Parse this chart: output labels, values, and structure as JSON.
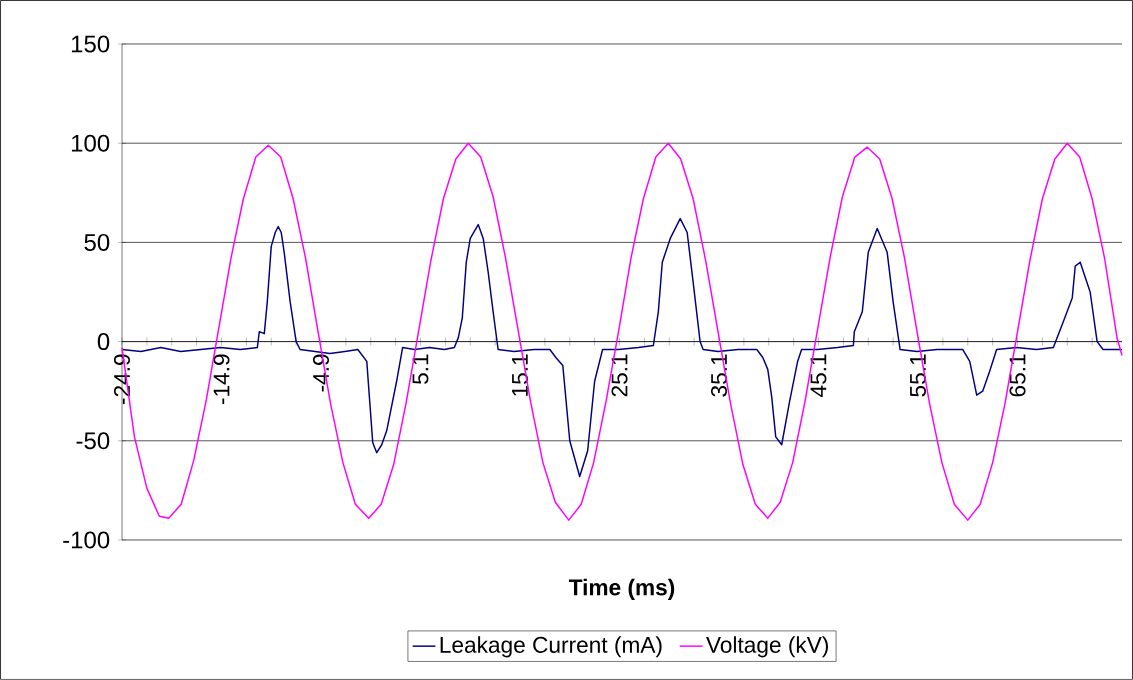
{
  "chart_data": {
    "type": "line",
    "xlabel": "Time (ms)",
    "xlim": [
      -24.9,
      75.6
    ],
    "ylim": [
      -100,
      150
    ],
    "xticks": [
      {
        "value": -24.9,
        "label": "-24.9"
      },
      {
        "value": -22.4,
        "label": null
      },
      {
        "value": -19.9,
        "label": null
      },
      {
        "value": -17.4,
        "label": null
      },
      {
        "value": -14.9,
        "label": "-14.9"
      },
      {
        "value": -12.4,
        "label": null
      },
      {
        "value": -9.9,
        "label": null
      },
      {
        "value": -7.4,
        "label": null
      },
      {
        "value": -4.9,
        "label": "-4.9"
      },
      {
        "value": -2.4,
        "label": null
      },
      {
        "value": 0.1,
        "label": null
      },
      {
        "value": 2.6,
        "label": null
      },
      {
        "value": 5.1,
        "label": "5.1"
      },
      {
        "value": 7.6,
        "label": null
      },
      {
        "value": 10.1,
        "label": null
      },
      {
        "value": 12.6,
        "label": null
      },
      {
        "value": 15.1,
        "label": "15.1"
      },
      {
        "value": 17.6,
        "label": null
      },
      {
        "value": 20.1,
        "label": null
      },
      {
        "value": 22.6,
        "label": null
      },
      {
        "value": 25.1,
        "label": "25.1"
      },
      {
        "value": 27.6,
        "label": null
      },
      {
        "value": 30.1,
        "label": null
      },
      {
        "value": 32.6,
        "label": null
      },
      {
        "value": 35.1,
        "label": "35.1"
      },
      {
        "value": 37.6,
        "label": null
      },
      {
        "value": 40.1,
        "label": null
      },
      {
        "value": 42.6,
        "label": null
      },
      {
        "value": 45.1,
        "label": "45.1"
      },
      {
        "value": 47.6,
        "label": null
      },
      {
        "value": 50.1,
        "label": null
      },
      {
        "value": 52.6,
        "label": null
      },
      {
        "value": 55.1,
        "label": "55.1"
      },
      {
        "value": 57.6,
        "label": null
      },
      {
        "value": 60.1,
        "label": null
      },
      {
        "value": 62.6,
        "label": null
      },
      {
        "value": 65.1,
        "label": "65.1"
      },
      {
        "value": 67.6,
        "label": null
      },
      {
        "value": 70.1,
        "label": null
      },
      {
        "value": 72.6,
        "label": null
      },
      {
        "value": 75.1,
        "label": null
      }
    ],
    "yticks": [
      -100,
      -50,
      0,
      50,
      100,
      150
    ],
    "grid": "y",
    "legend": "bottom",
    "series": [
      {
        "name": "Leakage Current (mA)",
        "color": "#000080",
        "x": [
          -24.9,
          -23,
          -21,
          -19,
          -17,
          -15,
          -13,
          -11.3,
          -11.1,
          -10.6,
          -10.3,
          -9.9,
          -9.5,
          -9.2,
          -8.9,
          -8.6,
          -8.0,
          -7.4,
          -7.0,
          -5.5,
          -4,
          -2.5,
          -1.2,
          -0.3,
          0.3,
          0.7,
          1.2,
          1.7,
          2.7,
          3.3,
          4.5,
          6,
          7.5,
          8.5,
          8.9,
          9.3,
          9.7,
          10.1,
          10.9,
          11.4,
          11.9,
          12.4,
          12.9,
          14.5,
          16.5,
          18.1,
          18.7,
          19.4,
          20.1,
          21.1,
          21.9,
          22.6,
          23.4,
          25,
          27,
          28.5,
          29.0,
          29.4,
          30.2,
          31.2,
          31.9,
          32.5,
          33.2,
          33.5,
          35,
          37,
          38.9,
          39.5,
          40.0,
          40.4,
          40.8,
          41.4,
          42.2,
          43.0,
          43.4,
          45,
          47,
          48.6,
          48.7,
          49.5,
          50.1,
          51.0,
          52.0,
          52.6,
          53.3,
          55,
          57,
          59.6,
          60.3,
          61.0,
          61.6,
          62.3,
          63.0,
          65,
          67,
          68.7,
          69.7,
          70.6,
          70.9,
          71.4,
          72.4,
          73.1,
          73.7,
          75.6
        ],
        "values": [
          -4,
          -5,
          -3,
          -5,
          -4,
          -3,
          -4,
          -3,
          5,
          4,
          20,
          48,
          55,
          58,
          55,
          45,
          20,
          0,
          -4,
          -5,
          -6,
          -5,
          -4,
          -10,
          -51,
          -56,
          -52,
          -45,
          -20,
          -3,
          -4,
          -3,
          -4,
          -3,
          2,
          12,
          40,
          52,
          59,
          52,
          35,
          15,
          -4,
          -5,
          -4,
          -4,
          -8,
          -12,
          -50,
          -68,
          -55,
          -20,
          -4,
          -4,
          -3,
          -2,
          15,
          40,
          52,
          62,
          55,
          30,
          0,
          -4,
          -5,
          -4,
          -4,
          -8,
          -14,
          -28,
          -48,
          -52,
          -30,
          -10,
          -4,
          -4,
          -3,
          -2,
          5,
          15,
          45,
          57,
          45,
          20,
          -4,
          -5,
          -4,
          -4,
          -10,
          -27,
          -25,
          -15,
          -4,
          -3,
          -4,
          -3,
          10,
          22,
          38,
          40,
          25,
          0,
          -4,
          -4
        ]
      },
      {
        "name": "Voltage (kV)",
        "color": "#ff00ff",
        "x": [
          -24.9,
          -23.65,
          -22.4,
          -21.15,
          -20.2,
          -18.95,
          -17.7,
          -16.45,
          -15.2,
          -13.95,
          -12.7,
          -11.45,
          -10.2,
          -8.95,
          -7.7,
          -6.45,
          -5.2,
          -3.95,
          -2.7,
          -1.45,
          -0.1,
          1.15,
          2.4,
          3.65,
          4.9,
          6.15,
          7.4,
          8.65,
          9.9,
          11.15,
          12.4,
          13.65,
          14.9,
          16.15,
          17.4,
          18.65,
          20.0,
          21.25,
          22.5,
          23.75,
          25.0,
          26.25,
          27.5,
          28.75,
          30.0,
          31.25,
          32.5,
          33.75,
          35.0,
          36.25,
          37.5,
          38.75,
          40.0,
          41.25,
          42.5,
          43.75,
          45.0,
          46.25,
          47.5,
          48.75,
          50.0,
          51.25,
          52.5,
          53.75,
          55.0,
          56.25,
          57.5,
          58.75,
          60.1,
          61.35,
          62.6,
          63.85,
          65.1,
          66.35,
          67.6,
          68.85,
          70.1,
          71.35,
          72.6,
          73.85,
          75.1,
          75.6
        ],
        "values": [
          -3,
          -48,
          -74,
          -88,
          -89,
          -82,
          -60,
          -30,
          6,
          42,
          72,
          93,
          99,
          93,
          72,
          42,
          5,
          -31,
          -61,
          -82,
          -89,
          -82,
          -62,
          -31,
          5,
          41,
          72,
          92,
          100,
          93,
          73,
          42,
          6,
          -30,
          -61,
          -81,
          -90,
          -82,
          -61,
          -30,
          5,
          42,
          72,
          93,
          100,
          92,
          72,
          41,
          5,
          -31,
          -62,
          -82,
          -89,
          -81,
          -61,
          -30,
          6,
          42,
          73,
          93,
          98,
          92,
          72,
          42,
          5,
          -31,
          -61,
          -82,
          -90,
          -82,
          -61,
          -31,
          5,
          41,
          72,
          92,
          100,
          93,
          72,
          42,
          2,
          -7
        ]
      }
    ]
  }
}
